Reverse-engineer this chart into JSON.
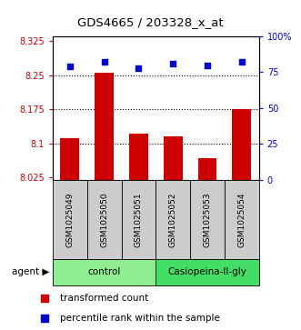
{
  "title": "GDS4665 / 203328_x_at",
  "samples": [
    "GSM1025049",
    "GSM1025050",
    "GSM1025051",
    "GSM1025052",
    "GSM1025053",
    "GSM1025054"
  ],
  "bar_values": [
    8.112,
    8.255,
    8.122,
    8.115,
    8.068,
    8.175
  ],
  "percentile_values": [
    79,
    82,
    78,
    81,
    80,
    82
  ],
  "ylim_left": [
    8.02,
    8.335
  ],
  "ylim_right": [
    0,
    100
  ],
  "yticks_left": [
    8.025,
    8.1,
    8.175,
    8.25,
    8.325
  ],
  "yticks_right": [
    0,
    25,
    50,
    75,
    100
  ],
  "ytick_labels_left": [
    "8.025",
    "8.1",
    "8.175",
    "8.25",
    "8.325"
  ],
  "ytick_labels_right": [
    "0",
    "25",
    "50",
    "75",
    "100%"
  ],
  "bar_color": "#cc0000",
  "dot_color": "#0000cc",
  "bar_bottom": 8.02,
  "grid_dotted_lines": [
    8.1,
    8.175,
    8.25
  ],
  "group_info": [
    {
      "xstart": -0.5,
      "xend": 2.5,
      "label": "control",
      "color": "#90ee90"
    },
    {
      "xstart": 2.5,
      "xend": 5.5,
      "label": "Casiopeina-II-gly",
      "color": "#44dd66"
    }
  ],
  "agent_label": "agent",
  "agent_arrow": "▶",
  "legend_bar_label": "transformed count",
  "legend_dot_label": "percentile rank within the sample",
  "sample_box_color": "#cccccc",
  "n_samples": 6
}
